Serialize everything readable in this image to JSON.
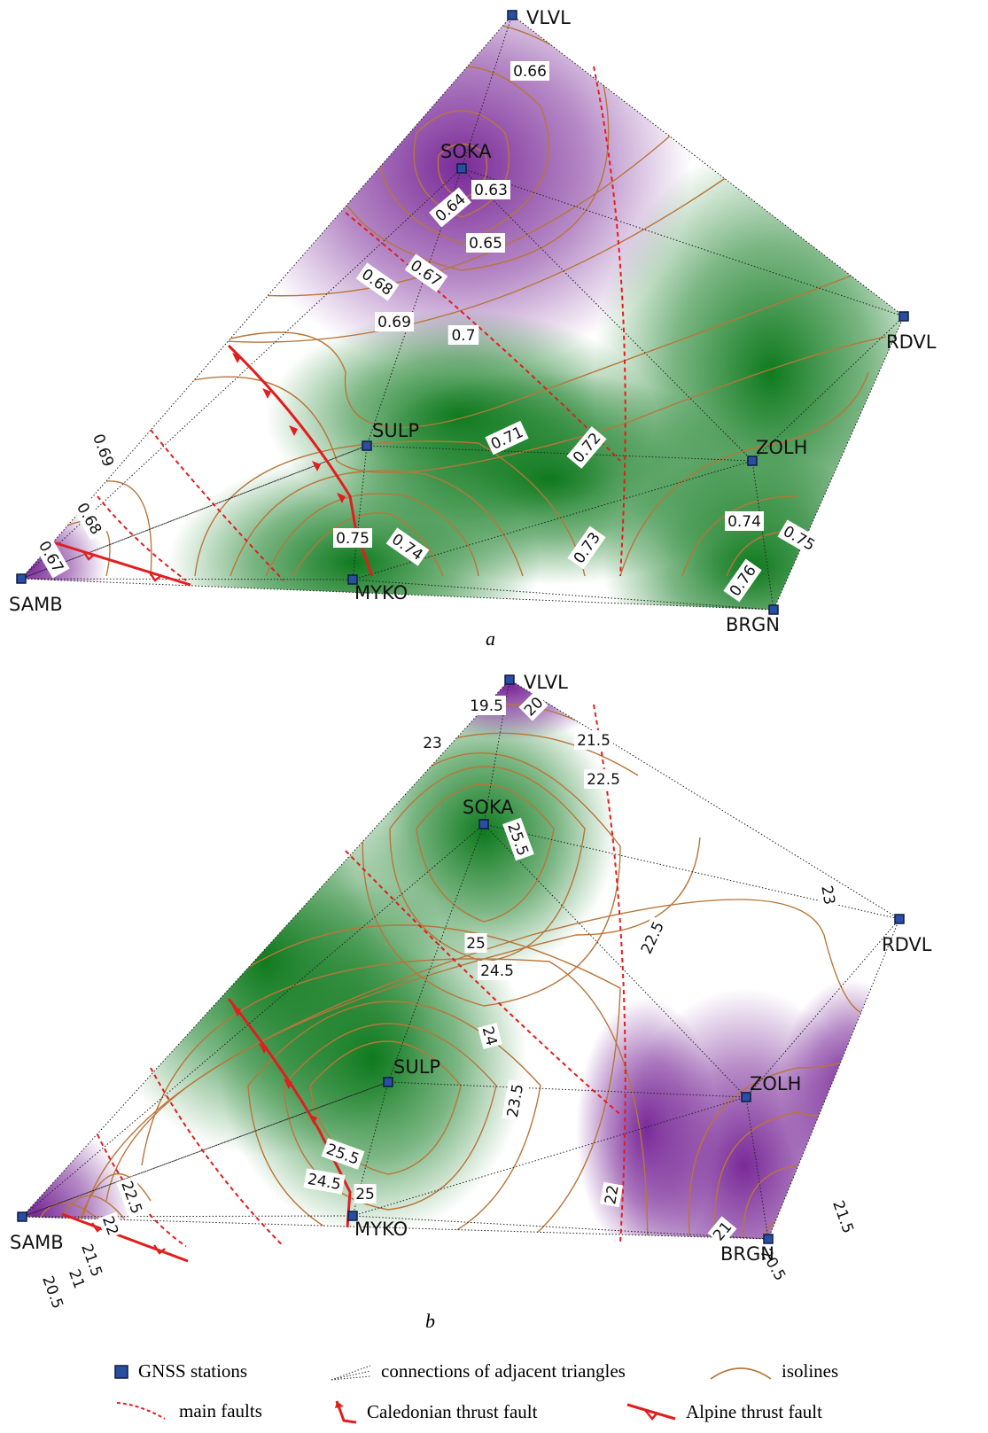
{
  "figure": {
    "panel_a": {
      "caption": "a",
      "stations": [
        {
          "id": "VLVL",
          "label": "VLVL"
        },
        {
          "id": "SOKA",
          "label": "SOKA"
        },
        {
          "id": "RDVL",
          "label": "RDVL"
        },
        {
          "id": "SULP",
          "label": "SULP"
        },
        {
          "id": "ZOLH",
          "label": "ZOLH"
        },
        {
          "id": "SAMB",
          "label": "SAMB"
        },
        {
          "id": "MYKO",
          "label": "MYKO"
        },
        {
          "id": "BRGN",
          "label": "BRGN"
        }
      ],
      "isoline_labels": [
        "0.66",
        "0.63",
        "0.64",
        "0.65",
        "0.67",
        "0.68",
        "0.69",
        "0.7",
        "0.71",
        "0.72",
        "0.69",
        "0.68",
        "0.67",
        "0.75",
        "0.74",
        "0.73",
        "0.74",
        "0.75",
        "0.76"
      ],
      "colors": {
        "low": "#7a2a98",
        "mid": "#ffffff",
        "high": "#0f7a1e"
      }
    },
    "panel_b": {
      "caption": "b",
      "stations": [
        {
          "id": "VLVL",
          "label": "VLVL"
        },
        {
          "id": "SOKA",
          "label": "SOKA"
        },
        {
          "id": "RDVL",
          "label": "RDVL"
        },
        {
          "id": "SULP",
          "label": "SULP"
        },
        {
          "id": "ZOLH",
          "label": "ZOLH"
        },
        {
          "id": "SAMB",
          "label": "SAMB"
        },
        {
          "id": "MYKO",
          "label": "MYKO"
        },
        {
          "id": "BRGN",
          "label": "BRGN"
        }
      ],
      "isoline_labels": [
        "19.5",
        "20",
        "21.5",
        "22.5",
        "23",
        "25.5",
        "25",
        "24.5",
        "23",
        "22.5",
        "24",
        "23.5",
        "22",
        "25.5",
        "24.5",
        "25",
        "22.5",
        "22",
        "21.5",
        "21",
        "20.5",
        "21",
        "21.5",
        "20.5"
      ],
      "colors": {
        "low": "#7a2a98",
        "mid": "#ffffff",
        "high": "#0f7a1e"
      }
    }
  },
  "legend": {
    "gnss": "GNSS stations",
    "connections": "connections of adjacent triangles",
    "isolines": "isolines",
    "main_faults": "main faults",
    "caledonian": "Caledonian thrust fault",
    "alpine": "Alpine thrust fault"
  },
  "style": {
    "station_fill": "#2a4fa0",
    "fault_red": "#e11e1e",
    "isoline_brown": "#b8763a"
  }
}
